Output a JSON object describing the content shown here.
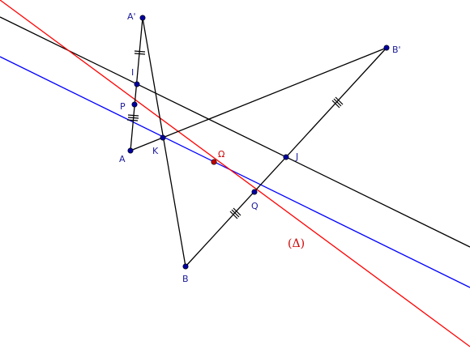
{
  "colors": {
    "background": "#ffffff",
    "segment": "#000000",
    "line_black": "#000000",
    "line_blue": "#0000ff",
    "line_red": "#ff0000",
    "point_fill": "#0000a0",
    "point_special_fill": "#c00000",
    "label_blue": "#1a1a9a",
    "label_red": "#cc0000"
  },
  "points": {
    "A_prime": {
      "label": "A'"
    },
    "I": {
      "label": "I"
    },
    "P": {
      "label": "P"
    },
    "A": {
      "label": "A"
    },
    "K": {
      "label": "K"
    },
    "Omega": {
      "label": "Ω"
    },
    "J": {
      "label": "J"
    },
    "Q": {
      "label": "Q"
    },
    "B": {
      "label": "B"
    },
    "B_prime": {
      "label": "B'"
    }
  },
  "line_delta_label": "(Δ)"
}
